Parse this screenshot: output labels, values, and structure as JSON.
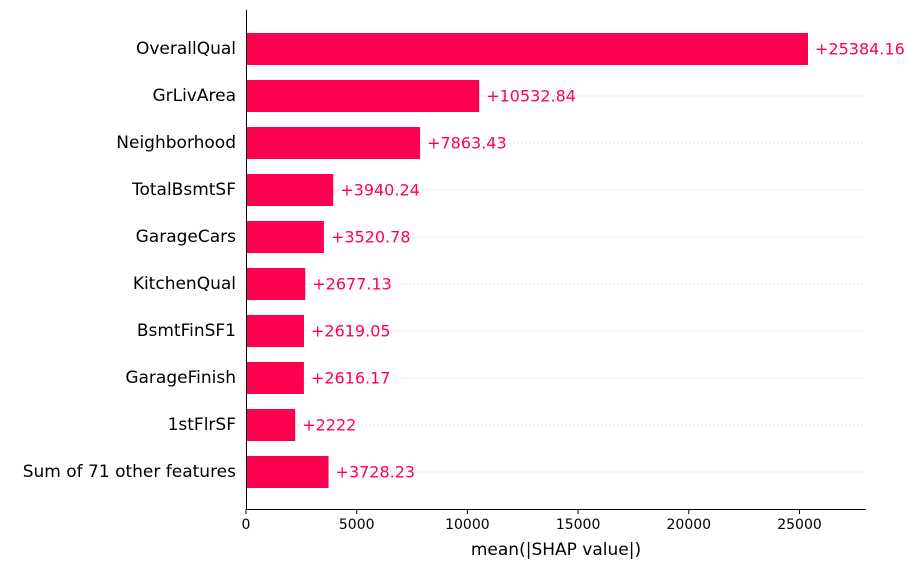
{
  "chart_data": {
    "type": "bar",
    "orientation": "horizontal",
    "categories": [
      "OverallQual",
      "GrLivArea",
      "Neighborhood",
      "TotalBsmtSF",
      "GarageCars",
      "KitchenQual",
      "BsmtFinSF1",
      "GarageFinish",
      "1stFlrSF",
      "Sum of 71 other features"
    ],
    "values": [
      25384.16,
      10532.84,
      7863.43,
      3940.24,
      3520.78,
      2677.13,
      2619.05,
      2616.17,
      2222,
      3728.23
    ],
    "value_labels": [
      "+25384.16",
      "+10532.84",
      "+7863.43",
      "+3940.24",
      "+3520.78",
      "+2677.13",
      "+2619.05",
      "+2616.17",
      "+2222",
      "+3728.23"
    ],
    "xlabel": "mean(|SHAP value|)",
    "xlim": [
      0,
      28000
    ],
    "xticks": [
      0,
      5000,
      10000,
      15000,
      20000,
      25000
    ],
    "grid": "dotted row guides",
    "colors": {
      "bar": "#ff0051",
      "value_text": "#ff0051",
      "grid": "#cccccc",
      "axis": "#000000"
    }
  }
}
